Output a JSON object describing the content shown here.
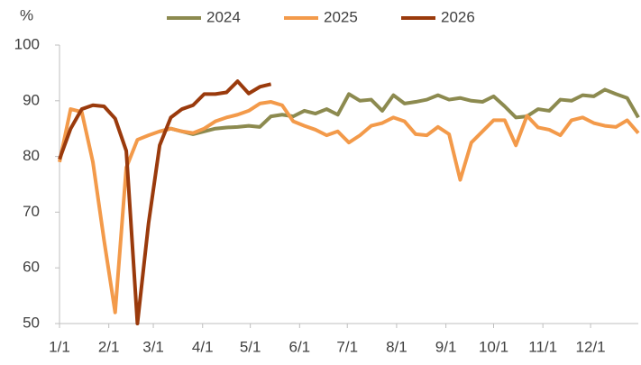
{
  "chart_data": {
    "type": "line",
    "ylabel": "%",
    "x": [
      0,
      7,
      14,
      21,
      28,
      35,
      42,
      49,
      56,
      63,
      70,
      77,
      84,
      91,
      98,
      105,
      112,
      119,
      126,
      133,
      140,
      147,
      154,
      161,
      168,
      175,
      182,
      189,
      196,
      203,
      210,
      217,
      224,
      231,
      238,
      245,
      252,
      259,
      266,
      273,
      280,
      287,
      294,
      301,
      308,
      315,
      322,
      329,
      336,
      343,
      350,
      357,
      364
    ],
    "xlim": [
      0,
      364
    ],
    "xticks": [
      {
        "value": 0,
        "label": "1/1"
      },
      {
        "value": 31,
        "label": "2/1"
      },
      {
        "value": 59,
        "label": "3/1"
      },
      {
        "value": 90,
        "label": "4/1"
      },
      {
        "value": 120,
        "label": "5/1"
      },
      {
        "value": 151,
        "label": "6/1"
      },
      {
        "value": 181,
        "label": "7/1"
      },
      {
        "value": 212,
        "label": "8/1"
      },
      {
        "value": 243,
        "label": "9/1"
      },
      {
        "value": 273,
        "label": "10/1"
      },
      {
        "value": 304,
        "label": "11/1"
      },
      {
        "value": 334,
        "label": "12/1"
      }
    ],
    "ylim": [
      50,
      100
    ],
    "yticks": [
      50,
      60,
      70,
      80,
      90,
      100
    ],
    "legend": "top",
    "series": [
      {
        "name": "2024",
        "color": "#8c8a4f",
        "values": [
          null,
          null,
          null,
          null,
          null,
          null,
          null,
          null,
          null,
          84.5,
          85,
          84.5,
          84,
          84.5,
          85,
          85.2,
          85.3,
          85.5,
          85.3,
          87.2,
          87.5,
          87.2,
          88.2,
          87.7,
          88.5,
          87.5,
          91.2,
          90,
          90.2,
          88.2,
          91,
          89.5,
          89.8,
          90.2,
          91,
          90.2,
          90.5,
          90,
          89.8,
          90.8,
          89,
          87,
          87.2,
          88.5,
          88.2,
          90.2,
          90,
          91,
          90.8,
          92,
          91.2,
          90.5,
          87
        ]
      },
      {
        "name": "2025",
        "color": "#f39a4a",
        "values": [
          79,
          88.5,
          88,
          79,
          65,
          52,
          78,
          83,
          83.8,
          84.5,
          85,
          84.5,
          84.2,
          85,
          86.3,
          87,
          87.5,
          88.2,
          89.5,
          89.8,
          89.2,
          86.3,
          85.5,
          84.8,
          83.8,
          84.5,
          82.5,
          83.8,
          85.5,
          86,
          87,
          86.3,
          84,
          83.8,
          85.3,
          84,
          75.8,
          82.5,
          84.5,
          86.5,
          86.5,
          82,
          87.3,
          85.2,
          84.8,
          83.8,
          86.5,
          87,
          86,
          85.5,
          85.3,
          86.5,
          84.2
        ]
      },
      {
        "name": "2026",
        "color": "#9a3a0c",
        "values": [
          79.5,
          85,
          88.5,
          89.2,
          89,
          86.8,
          81,
          50,
          68,
          82,
          87,
          88.5,
          89.2,
          91.2,
          91.2,
          91.5,
          93.5,
          91.3,
          92.5,
          93,
          null,
          null,
          null,
          null,
          null,
          null,
          null,
          null,
          null,
          null,
          null,
          null,
          null,
          null,
          null,
          null,
          null,
          null,
          null,
          null,
          null,
          null,
          null,
          null,
          null,
          null,
          null,
          null,
          null,
          null,
          null,
          null,
          null
        ]
      }
    ]
  }
}
